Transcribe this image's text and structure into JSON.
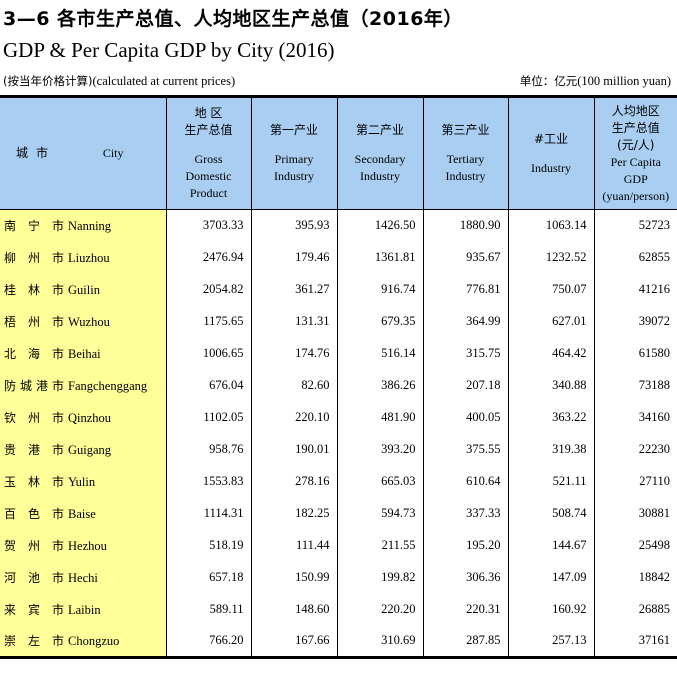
{
  "title_cn": "3—6 各市生产总值、人均地区生产总值（2016年）",
  "title_en": "GDP & Per Capita GDP by City (2016)",
  "note_left_cn": "(按当年价格计算)",
  "note_left_en": "(calculated at current prices)",
  "note_right_cn": "单位：亿元",
  "note_right_en": "(100 million yuan)",
  "headers": {
    "city_cn": "城市",
    "city_en": "City",
    "gdp_cn_1": "地 区",
    "gdp_cn_2": "生产总值",
    "gdp_en_1": "Gross",
    "gdp_en_2": "Domestic",
    "gdp_en_3": "Product",
    "primary_cn": "第一产业",
    "primary_en_1": "Primary",
    "primary_en_2": "Industry",
    "secondary_cn": "第二产业",
    "secondary_en_1": "Secondary",
    "secondary_en_2": "Industry",
    "tertiary_cn": "第三产业",
    "tertiary_en_1": "Tertiary",
    "tertiary_en_2": "Industry",
    "industry_cn": "#工业",
    "industry_en": "Industry",
    "percap_cn_1": "人均地区",
    "percap_cn_2": "生产总值",
    "percap_cn_3": "(元/人)",
    "percap_en_1": "Per Capita",
    "percap_en_2": "GDP",
    "percap_en_3": "(yuan/person)"
  },
  "rows": [
    {
      "cn": "南宁市",
      "en": "Nanning",
      "gdp": "3703.33",
      "primary": "395.93",
      "secondary": "1426.50",
      "tertiary": "1880.90",
      "industry": "1063.14",
      "percap": "52723"
    },
    {
      "cn": "柳州市",
      "en": "Liuzhou",
      "gdp": "2476.94",
      "primary": "179.46",
      "secondary": "1361.81",
      "tertiary": "935.67",
      "industry": "1232.52",
      "percap": "62855"
    },
    {
      "cn": "桂林市",
      "en": "Guilin",
      "gdp": "2054.82",
      "primary": "361.27",
      "secondary": "916.74",
      "tertiary": "776.81",
      "industry": "750.07",
      "percap": "41216"
    },
    {
      "cn": "梧州市",
      "en": "Wuzhou",
      "gdp": "1175.65",
      "primary": "131.31",
      "secondary": "679.35",
      "tertiary": "364.99",
      "industry": "627.01",
      "percap": "39072"
    },
    {
      "cn": "北海市",
      "en": "Beihai",
      "gdp": "1006.65",
      "primary": "174.76",
      "secondary": "516.14",
      "tertiary": "315.75",
      "industry": "464.42",
      "percap": "61580"
    },
    {
      "cn": "防城港市",
      "en": "Fangchenggang",
      "gdp": "676.04",
      "primary": "82.60",
      "secondary": "386.26",
      "tertiary": "207.18",
      "industry": "340.88",
      "percap": "73188"
    },
    {
      "cn": "钦州市",
      "en": "Qinzhou",
      "gdp": "1102.05",
      "primary": "220.10",
      "secondary": "481.90",
      "tertiary": "400.05",
      "industry": "363.22",
      "percap": "34160"
    },
    {
      "cn": "贵港市",
      "en": "Guigang",
      "gdp": "958.76",
      "primary": "190.01",
      "secondary": "393.20",
      "tertiary": "375.55",
      "industry": "319.38",
      "percap": "22230"
    },
    {
      "cn": "玉林市",
      "en": "Yulin",
      "gdp": "1553.83",
      "primary": "278.16",
      "secondary": "665.03",
      "tertiary": "610.64",
      "industry": "521.11",
      "percap": "27110"
    },
    {
      "cn": "百色市",
      "en": "Baise",
      "gdp": "1114.31",
      "primary": "182.25",
      "secondary": "594.73",
      "tertiary": "337.33",
      "industry": "508.74",
      "percap": "30881"
    },
    {
      "cn": "贺州市",
      "en": "Hezhou",
      "gdp": "518.19",
      "primary": "111.44",
      "secondary": "211.55",
      "tertiary": "195.20",
      "industry": "144.67",
      "percap": "25498"
    },
    {
      "cn": "河池市",
      "en": "Hechi",
      "gdp": "657.18",
      "primary": "150.99",
      "secondary": "199.82",
      "tertiary": "306.36",
      "industry": "147.09",
      "percap": "18842"
    },
    {
      "cn": "来宾市",
      "en": "Laibin",
      "gdp": "589.11",
      "primary": "148.60",
      "secondary": "220.20",
      "tertiary": "220.31",
      "industry": "160.92",
      "percap": "26885"
    },
    {
      "cn": "崇左市",
      "en": "Chongzuo",
      "gdp": "766.20",
      "primary": "167.66",
      "secondary": "310.69",
      "tertiary": "287.85",
      "industry": "257.13",
      "percap": "37161"
    }
  ],
  "colors": {
    "header_bg": "#a9cef1",
    "city_col_bg": "#ffff99"
  }
}
